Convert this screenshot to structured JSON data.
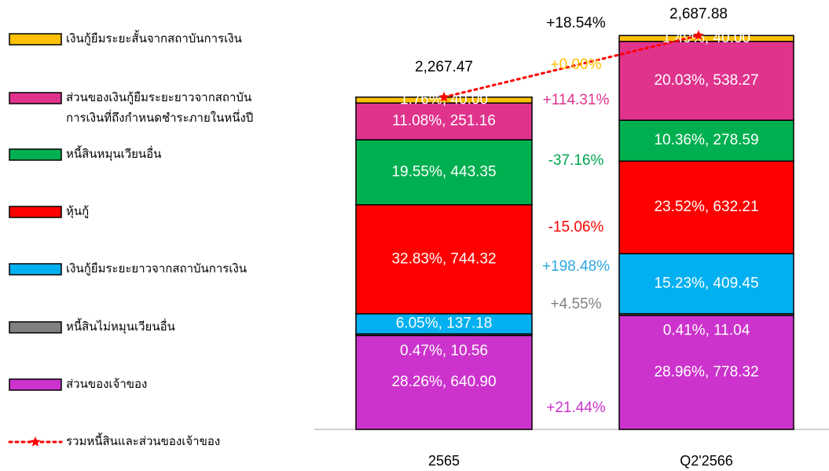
{
  "chart_data": {
    "type": "stacked_bar",
    "categories": [
      "2565",
      "Q2'2566"
    ],
    "ylim": [
      0,
      2700
    ],
    "series": [
      {
        "name": "ส่วนของเจ้าของ",
        "color": "#CC33CC",
        "values": [
          640.9,
          778.32
        ],
        "value_labels": [
          "28.26%,  640.90",
          "28.96%,  778.32"
        ],
        "change_label": "+21.44%",
        "change_color": "#CC33CC"
      },
      {
        "name": "หนี้สินไม่หมุนเวียนอื่น",
        "color": "#808080",
        "values": [
          10.56,
          11.04
        ],
        "value_labels": [
          "0.47%,  10.56",
          "0.41%,  11.04"
        ],
        "change_label": "+4.55%",
        "change_color": "#7f7f7f"
      },
      {
        "name": "เงินกู้ยืมระยะยาวจากสถาบันการเงิน",
        "color": "#00B0F0",
        "values": [
          137.18,
          409.45
        ],
        "value_labels": [
          "6.05%,  137.18",
          "15.23%,  409.45"
        ],
        "change_label": "+198.48%",
        "change_color": "#2EA8E0"
      },
      {
        "name": "หุ้นกู้",
        "color": "#FF0000",
        "values": [
          744.32,
          632.21
        ],
        "value_labels": [
          "32.83%,  744.32",
          "23.52%,  632.21"
        ],
        "change_label": "-15.06%",
        "change_color": "#FF0000"
      },
      {
        "name": "หนี้สินหมุนเวียนอื่น",
        "color": "#00B050",
        "values": [
          443.35,
          278.59
        ],
        "value_labels": [
          "19.55%,  443.35",
          "10.36%,  278.59"
        ],
        "change_label": "-37.16%",
        "change_color": "#00A650"
      },
      {
        "name": "ส่วนของเงินกู้ยืมระยะยาวจากสถาบัน\nการเงินที่ถึงกำหนดชำระภายในหนึ่งปี",
        "color": "#E0338C",
        "values": [
          251.16,
          538.27
        ],
        "value_labels": [
          "11.08%,  251.16",
          "20.03%,  538.27"
        ],
        "change_label": "+114.31%",
        "change_color": "#E0338C"
      },
      {
        "name": "เงินกู้ยืมระยะสั้นจากสถาบันการเงิน",
        "color": "#FFC000",
        "values": [
          40.0,
          40.0
        ],
        "value_labels": [
          "1.76%,  40.00",
          "1.49%,  40.00"
        ],
        "change_label": "+0.00%",
        "change_color": "#FFC000"
      }
    ],
    "total": {
      "name": "รวมหนี้สินและส่วนของเจ้าของ",
      "color": "#FF0000",
      "values": [
        2267.47,
        2687.88
      ],
      "value_labels": [
        "2,267.47",
        "2,687.88"
      ],
      "change_label": "+18.54%",
      "change_color": "#000000"
    }
  }
}
